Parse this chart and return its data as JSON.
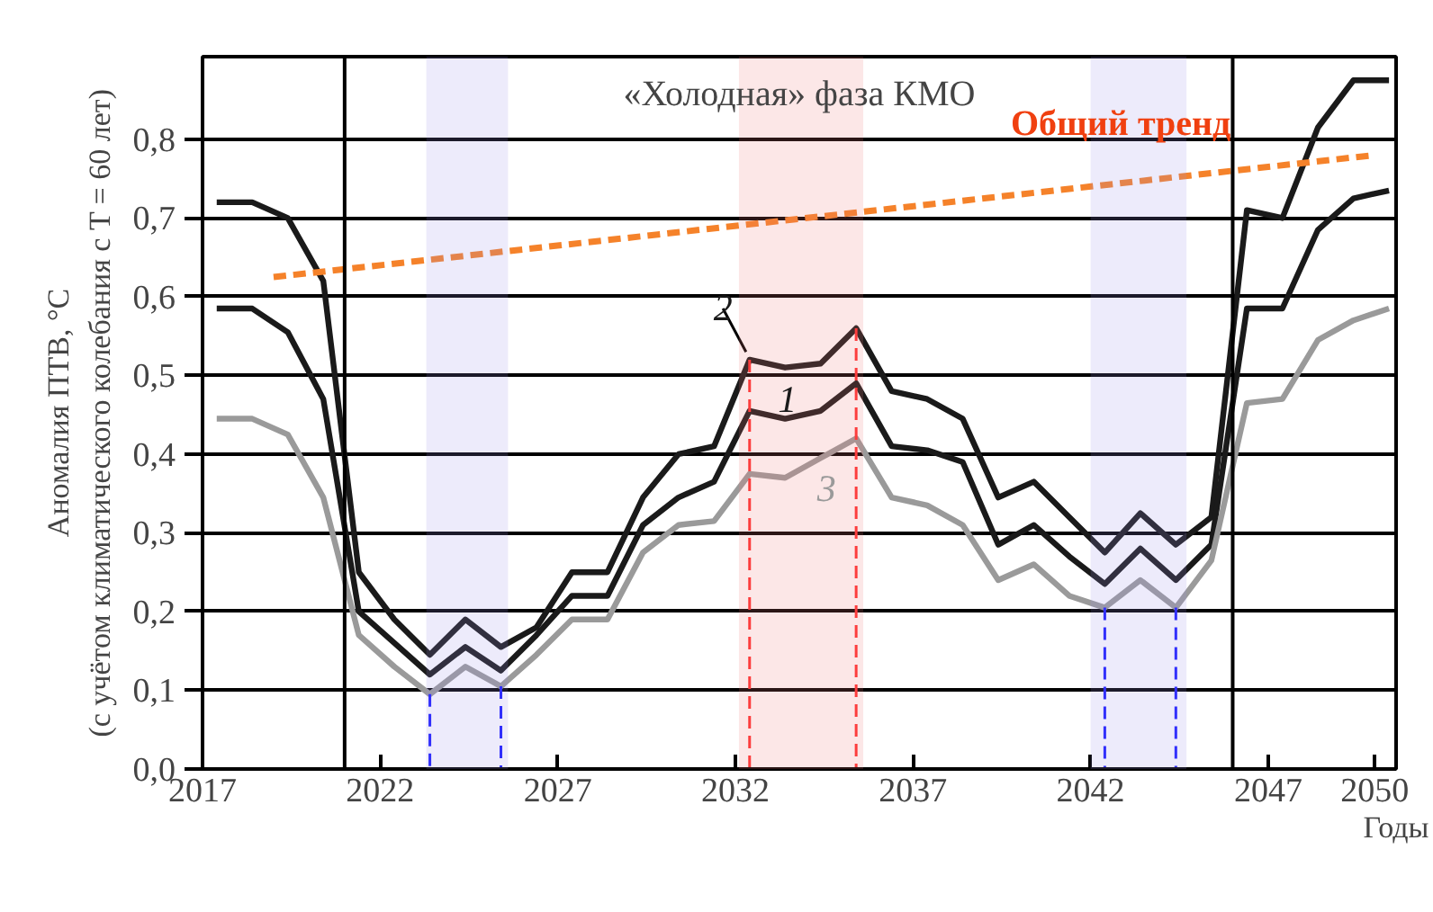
{
  "chart_data": {
    "type": "line",
    "title": "«Холодная» фаза КМО",
    "xlabel": "Годы",
    "ylabel": "Аномалия ПТВ, °C\n(с учётом климатического колебания с T = 60 лет)",
    "x": [
      2017.4,
      2018.4,
      2019.4,
      2020.4,
      2021.4,
      2022.4,
      2023.4,
      2024.4,
      2025.4,
      2026.4,
      2027.4,
      2028.4,
      2029.4,
      2030.4,
      2031.4,
      2032.4,
      2033.4,
      2034.4,
      2035.4,
      2036.4,
      2037.4,
      2038.4,
      2039.4,
      2040.4,
      2041.4,
      2042.4,
      2043.4,
      2044.4,
      2045.4,
      2046.4,
      2047.4,
      2048.4,
      2049.4,
      2050.4
    ],
    "series": [
      {
        "name": "2",
        "color": "#1a1a1a",
        "values": [
          0.72,
          0.72,
          0.7,
          0.62,
          0.25,
          0.19,
          0.145,
          0.19,
          0.155,
          0.18,
          0.25,
          0.25,
          0.345,
          0.4,
          0.41,
          0.52,
          0.51,
          0.515,
          0.56,
          0.48,
          0.47,
          0.445,
          0.345,
          0.365,
          0.32,
          0.275,
          0.325,
          0.285,
          0.32,
          0.71,
          0.7,
          0.815,
          0.875,
          0.875
        ]
      },
      {
        "name": "1",
        "color": "#1a1a1a",
        "values": [
          0.585,
          0.585,
          0.555,
          0.47,
          0.2,
          0.16,
          0.12,
          0.155,
          0.125,
          0.17,
          0.22,
          0.22,
          0.31,
          0.345,
          0.365,
          0.455,
          0.445,
          0.455,
          0.49,
          0.41,
          0.405,
          0.39,
          0.285,
          0.31,
          0.27,
          0.235,
          0.28,
          0.24,
          0.285,
          0.585,
          0.585,
          0.685,
          0.725,
          0.735
        ]
      },
      {
        "name": "3",
        "color": "#9a9a9a",
        "values": [
          0.445,
          0.445,
          0.425,
          0.345,
          0.17,
          0.13,
          0.095,
          0.13,
          0.105,
          0.145,
          0.19,
          0.19,
          0.275,
          0.31,
          0.315,
          0.375,
          0.37,
          0.395,
          0.42,
          0.345,
          0.335,
          0.31,
          0.24,
          0.26,
          0.22,
          0.205,
          0.24,
          0.205,
          0.265,
          0.465,
          0.47,
          0.545,
          0.57,
          0.585
        ]
      },
      {
        "name": "Общий тренд",
        "color": "#f5822a",
        "line_style": "dashed",
        "x": [
          2019.0,
          2050.0
        ],
        "values": [
          0.625,
          0.78
        ]
      }
    ],
    "xlim": [
      2017,
      2050.6
    ],
    "ylim": [
      0,
      0.905
    ],
    "xticks": [
      2017,
      2022,
      2027,
      2032,
      2037,
      2042,
      2047,
      2050
    ],
    "yticks": [
      {
        "value": 0,
        "label": "0,0"
      },
      {
        "value": 0.1,
        "label": "0,1"
      },
      {
        "value": 0.2,
        "label": "0,2"
      },
      {
        "value": 0.3,
        "label": "0,3"
      },
      {
        "value": 0.4,
        "label": "0,4"
      },
      {
        "value": 0.5,
        "label": "0,5"
      },
      {
        "value": 0.6,
        "label": "0,6"
      },
      {
        "value": 0.7,
        "label": "0,7"
      },
      {
        "value": 0.8,
        "label": "0,8"
      }
    ],
    "grid": "y",
    "line_style": "solid",
    "marker": "none",
    "legend": false,
    "ref_lines": [
      {
        "axis": "x",
        "value": 2021,
        "color": "#000000",
        "line_style": "solid"
      },
      {
        "axis": "x",
        "value": 2046,
        "color": "#000000",
        "line_style": "solid"
      },
      {
        "axis": "x",
        "value": 2023.4,
        "color": "#1a1aff",
        "line_style": "dashed"
      },
      {
        "axis": "x",
        "value": 2025.4,
        "color": "#1a1aff",
        "line_style": "dashed"
      },
      {
        "axis": "x",
        "value": 2032.4,
        "color": "#ff3030",
        "line_style": "dashed"
      },
      {
        "axis": "x",
        "value": 2035.4,
        "color": "#ff3030",
        "line_style": "dashed"
      },
      {
        "axis": "x",
        "value": 2042.4,
        "color": "#1a1aff",
        "line_style": "dashed"
      },
      {
        "axis": "x",
        "value": 2044.4,
        "color": "#1a1aff",
        "line_style": "dashed"
      }
    ],
    "bands": [
      {
        "axis": "x",
        "from": 2023.3,
        "to": 2025.6,
        "color": "#9a8fe8"
      },
      {
        "axis": "x",
        "from": 2032.1,
        "to": 2035.6,
        "color": "#f07878"
      },
      {
        "axis": "x",
        "from": 2042.0,
        "to": 2044.7,
        "color": "#9a8fe8"
      }
    ]
  }
}
